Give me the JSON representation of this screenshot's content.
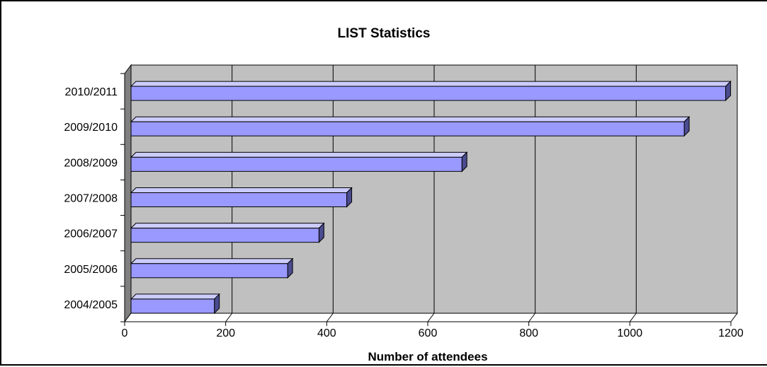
{
  "chart_data": {
    "type": "bar",
    "orientation": "horizontal",
    "style": "3d",
    "title": "LIST Statistics",
    "xlabel": "Number of attendees",
    "ylabel": "",
    "categories": [
      "2004/2005",
      "2005/2006",
      "2006/2007",
      "2007/2008",
      "2008/2009",
      "2009/2010",
      "2010/2011"
    ],
    "values": [
      165,
      310,
      372,
      427,
      655,
      1095,
      1177
    ],
    "xlim": [
      0,
      1200
    ],
    "xticks": [
      "0",
      "200",
      "400",
      "600",
      "800",
      "1000",
      "1200"
    ],
    "grid": true,
    "legend": "none",
    "colors": {
      "bar_front": "#9999FF",
      "bar_top": "#CCCCFF",
      "bar_side": "#4B4B8F",
      "plot_back": "#C0C0C0",
      "floor": "#FFFFFF",
      "left_wall": "#808080"
    }
  }
}
